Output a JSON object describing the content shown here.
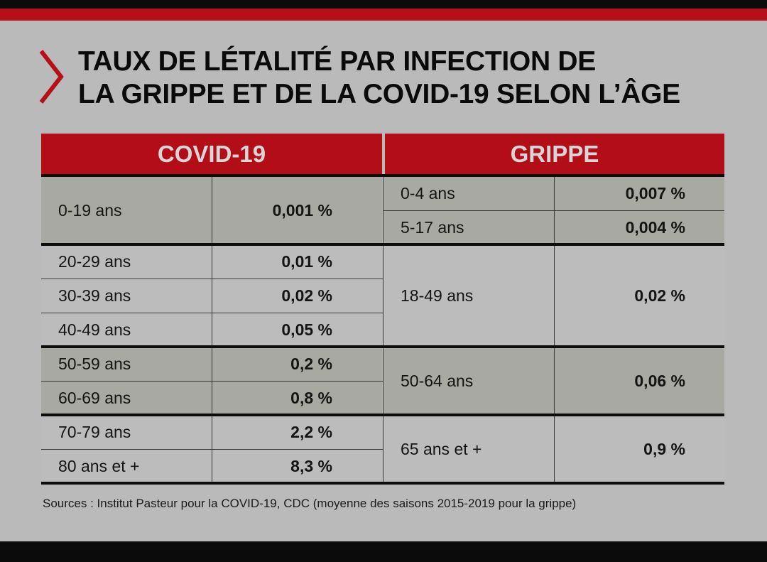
{
  "title": {
    "line1": "TAUX DE LÉTALITÉ PAR INFECTION DE",
    "line2": "LA GRIPPE ET DE LA COVID-19 SELON L’ÂGE"
  },
  "headers": {
    "covid": "COVID-19",
    "grippe": "GRIPPE"
  },
  "covid": [
    {
      "age": "0-19 ans",
      "rate": "0,001 %"
    },
    {
      "age": "20-29 ans",
      "rate": "0,01 %"
    },
    {
      "age": "30-39 ans",
      "rate": "0,02 %"
    },
    {
      "age": "40-49 ans",
      "rate": "0,05 %"
    },
    {
      "age": "50-59 ans",
      "rate": "0,2 %"
    },
    {
      "age": "60-69 ans",
      "rate": "0,8 %"
    },
    {
      "age": "70-79 ans",
      "rate": "2,2 %"
    },
    {
      "age": "80 ans et +",
      "rate": "8,3 %"
    }
  ],
  "grippe": [
    {
      "age": "0-4 ans",
      "rate": "0,007 %"
    },
    {
      "age": "5-17 ans",
      "rate": "0,004 %"
    },
    {
      "age": "18-49 ans",
      "rate": "0,02 %"
    },
    {
      "age": "50-64 ans",
      "rate": "0,06 %"
    },
    {
      "age": "65 ans et +",
      "rate": "0,9 %"
    }
  ],
  "sources": "Sources : Institut Pasteur pour la COVID-19, CDC (moyenne des saisons 2015-2019 pour la grippe)",
  "colors": {
    "accent": "#b30d17",
    "background": "#bababa"
  }
}
